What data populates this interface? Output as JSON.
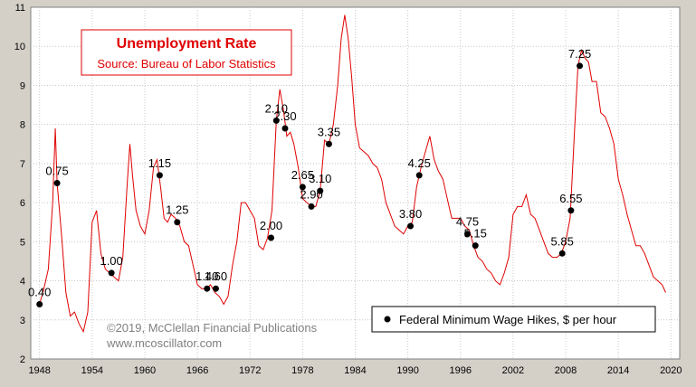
{
  "chart_data": {
    "type": "line",
    "title": "Unemployment Rate",
    "subtitle": "Source: Bureau of Labor Statistics",
    "xlim": [
      1947,
      2021
    ],
    "ylim": [
      2,
      11
    ],
    "x_ticks": [
      "1948",
      "1954",
      "1960",
      "1966",
      "1972",
      "1978",
      "1984",
      "1990",
      "1996",
      "2002",
      "2008",
      "2014",
      "2020"
    ],
    "y_ticks": [
      "2",
      "3",
      "4",
      "5",
      "6",
      "7",
      "8",
      "9",
      "10",
      "11"
    ],
    "grid": true,
    "legend_position": "bottom-right",
    "series": [
      {
        "color": "#e00000",
        "x": [
          1948.0,
          1948.5,
          1949.0,
          1949.5,
          1949.8,
          1950.0,
          1950.5,
          1951.0,
          1951.5,
          1952.0,
          1952.5,
          1953.0,
          1953.5,
          1954.0,
          1954.5,
          1955.0,
          1955.5,
          1956.0,
          1956.5,
          1957.0,
          1957.5,
          1958.0,
          1958.3,
          1958.6,
          1959.0,
          1959.5,
          1960.0,
          1960.5,
          1961.0,
          1961.4,
          1961.8,
          1962.2,
          1962.6,
          1963.0,
          1963.5,
          1964.0,
          1964.5,
          1965.0,
          1965.5,
          1966.0,
          1966.5,
          1967.0,
          1967.5,
          1968.0,
          1968.5,
          1969.0,
          1969.5,
          1970.0,
          1970.5,
          1971.0,
          1971.5,
          1972.0,
          1972.5,
          1973.0,
          1973.5,
          1974.0,
          1974.5,
          1975.0,
          1975.4,
          1975.8,
          1976.2,
          1976.6,
          1977.0,
          1977.5,
          1978.0,
          1978.5,
          1979.0,
          1979.5,
          1980.0,
          1980.5,
          1981.0,
          1981.5,
          1982.0,
          1982.4,
          1982.8,
          1983.2,
          1983.6,
          1984.0,
          1984.5,
          1985.0,
          1985.5,
          1986.0,
          1986.5,
          1987.0,
          1987.5,
          1988.0,
          1988.5,
          1989.0,
          1989.5,
          1990.0,
          1990.5,
          1991.0,
          1991.5,
          1992.0,
          1992.5,
          1993.0,
          1993.5,
          1994.0,
          1994.5,
          1995.0,
          1995.5,
          1996.0,
          1996.5,
          1997.0,
          1997.5,
          1998.0,
          1998.5,
          1999.0,
          1999.5,
          2000.0,
          2000.5,
          2001.0,
          2001.5,
          2002.0,
          2002.5,
          2003.0,
          2003.5,
          2004.0,
          2004.5,
          2005.0,
          2005.5,
          2006.0,
          2006.5,
          2007.0,
          2007.5,
          2008.0,
          2008.5,
          2009.0,
          2009.4,
          2009.8,
          2010.2,
          2010.6,
          2011.0,
          2011.5,
          2012.0,
          2012.5,
          2013.0,
          2013.5,
          2014.0,
          2014.5,
          2015.0,
          2015.5,
          2016.0,
          2016.5,
          2017.0,
          2017.5,
          2018.0,
          2018.5,
          2019.0,
          2019.4
        ],
        "y": [
          3.4,
          3.8,
          4.3,
          6.0,
          7.9,
          6.5,
          5.2,
          3.7,
          3.1,
          3.2,
          2.9,
          2.7,
          3.2,
          5.5,
          5.8,
          4.7,
          4.3,
          4.2,
          4.1,
          4.0,
          4.6,
          6.5,
          7.5,
          6.7,
          5.8,
          5.4,
          5.2,
          5.8,
          6.9,
          7.1,
          6.4,
          5.6,
          5.5,
          5.7,
          5.6,
          5.4,
          5.0,
          4.9,
          4.4,
          3.9,
          3.8,
          3.8,
          3.9,
          3.7,
          3.6,
          3.4,
          3.6,
          4.4,
          5.0,
          6.0,
          6.0,
          5.8,
          5.6,
          4.9,
          4.8,
          5.1,
          5.8,
          8.1,
          8.9,
          8.4,
          7.7,
          7.8,
          7.5,
          6.9,
          6.1,
          6.0,
          5.9,
          5.9,
          6.3,
          7.6,
          7.5,
          8.0,
          9.0,
          10.2,
          10.8,
          10.2,
          9.2,
          8.0,
          7.4,
          7.3,
          7.2,
          7.0,
          6.9,
          6.6,
          6.0,
          5.7,
          5.4,
          5.3,
          5.2,
          5.4,
          5.5,
          6.4,
          6.9,
          7.3,
          7.7,
          7.1,
          6.8,
          6.6,
          6.1,
          5.6,
          5.6,
          5.6,
          5.4,
          5.3,
          4.9,
          4.6,
          4.5,
          4.3,
          4.2,
          4.0,
          3.9,
          4.2,
          4.6,
          5.7,
          5.9,
          5.9,
          6.2,
          5.7,
          5.6,
          5.3,
          5.0,
          4.7,
          4.6,
          4.6,
          4.7,
          5.0,
          5.6,
          7.8,
          9.5,
          9.9,
          9.7,
          9.6,
          9.1,
          9.1,
          8.3,
          8.2,
          7.9,
          7.5,
          6.6,
          6.2,
          5.7,
          5.3,
          4.9,
          4.9,
          4.7,
          4.4,
          4.1,
          4.0,
          3.9,
          3.7
        ]
      }
    ],
    "wage_hikes": {
      "legend": "Federal Minimum Wage Hikes, $ per hour",
      "points": [
        {
          "x": 1950.0,
          "y": 6.5,
          "label": "0.75"
        },
        {
          "x": 1956.2,
          "y": 4.2,
          "label": "1.00"
        },
        {
          "x": 1961.7,
          "y": 6.7,
          "label": "1.15"
        },
        {
          "x": 1963.7,
          "y": 5.5,
          "label": "1.25"
        },
        {
          "x": 1967.1,
          "y": 3.8,
          "label": "1.40"
        },
        {
          "x": 1968.1,
          "y": 3.8,
          "label": "1.60"
        },
        {
          "x": 1974.4,
          "y": 5.1,
          "label": "2.00"
        },
        {
          "x": 1975.0,
          "y": 8.1,
          "label": "2.10"
        },
        {
          "x": 1976.0,
          "y": 7.9,
          "label": "2.30"
        },
        {
          "x": 1978.0,
          "y": 6.4,
          "label": "2.65"
        },
        {
          "x": 1979.0,
          "y": 5.9,
          "label": "2.90"
        },
        {
          "x": 1980.0,
          "y": 6.3,
          "label": "3.10"
        },
        {
          "x": 1981.0,
          "y": 7.5,
          "label": "3.35"
        },
        {
          "x": 1990.3,
          "y": 5.4,
          "label": "3.80"
        },
        {
          "x": 1991.3,
          "y": 6.7,
          "label": "4.25"
        },
        {
          "x": 1996.8,
          "y": 5.2,
          "label": "4.75"
        },
        {
          "x": 1997.7,
          "y": 4.9,
          "label": "5.15"
        },
        {
          "x": 2007.6,
          "y": 4.7,
          "label": "5.85"
        },
        {
          "x": 2008.6,
          "y": 5.8,
          "label": "6.55"
        },
        {
          "x": 2009.6,
          "y": 9.5,
          "label": "7.25"
        },
        {
          "x": 1948.0,
          "y": 3.4,
          "label": "0.40"
        }
      ]
    },
    "copyright": "©2019, McClellan Financial Publications",
    "website": "www.mcoscillator.com"
  }
}
